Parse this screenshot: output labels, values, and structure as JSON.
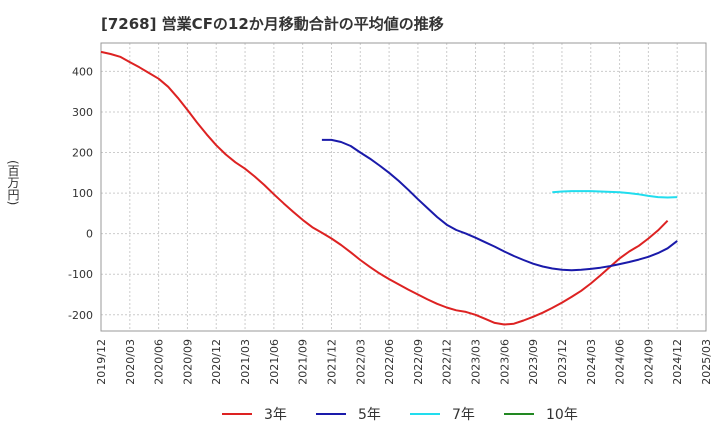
{
  "chart_data": {
    "type": "line",
    "title": "[7268]  営業CFの12か月移動合計の平均値の推移",
    "ylabel": "(百万円)",
    "xlabel": "",
    "ylim": [
      -240,
      470
    ],
    "yticks": [
      400,
      300,
      200,
      100,
      0,
      -100,
      -200
    ],
    "xticks": [
      "2019/12",
      "2020/03",
      "2020/06",
      "2020/09",
      "2020/12",
      "2021/03",
      "2021/06",
      "2021/09",
      "2021/12",
      "2022/03",
      "2022/06",
      "2022/09",
      "2022/12",
      "2023/03",
      "2023/06",
      "2023/09",
      "2023/12",
      "2024/03",
      "2024/06",
      "2024/09",
      "2024/12",
      "2025/03"
    ],
    "grid": true,
    "legend_position": "bottom",
    "series": [
      {
        "name": "3年",
        "color": "#dd2222",
        "x": [
          "2019/12",
          "2020/01",
          "2020/02",
          "2020/03",
          "2020/04",
          "2020/05",
          "2020/06",
          "2020/07",
          "2020/08",
          "2020/09",
          "2020/10",
          "2020/11",
          "2020/12",
          "2021/01",
          "2021/02",
          "2021/03",
          "2021/04",
          "2021/05",
          "2021/06",
          "2021/07",
          "2021/08",
          "2021/09",
          "2021/10",
          "2021/11",
          "2021/12",
          "2022/01",
          "2022/02",
          "2022/03",
          "2022/04",
          "2022/05",
          "2022/06",
          "2022/07",
          "2022/08",
          "2022/09",
          "2022/10",
          "2022/11",
          "2022/12",
          "2023/01",
          "2023/02",
          "2023/03",
          "2023/04",
          "2023/05",
          "2023/06",
          "2023/07",
          "2023/08",
          "2023/09",
          "2023/10",
          "2023/11",
          "2023/12",
          "2024/01",
          "2024/02",
          "2024/03",
          "2024/04",
          "2024/05",
          "2024/06",
          "2024/07",
          "2024/08",
          "2024/09",
          "2024/10",
          "2024/11",
          "2024/12"
        ],
        "values": [
          448,
          443,
          436,
          423,
          410,
          396,
          382,
          362,
          335,
          305,
          274,
          245,
          218,
          195,
          176,
          160,
          141,
          120,
          97,
          75,
          54,
          34,
          16,
          2,
          -12,
          -28,
          -46,
          -65,
          -82,
          -98,
          -112,
          -125,
          -138,
          -150,
          -162,
          -173,
          -182,
          -189,
          -193,
          -200,
          -210,
          -220,
          -224,
          -222,
          -214,
          -205,
          -195,
          -183,
          -170,
          -156,
          -141,
          -123,
          -103,
          -82,
          -61,
          -44,
          -30,
          -12,
          8,
          32,
          null
        ],
        "values_note": ""
      },
      {
        "name": "5年",
        "color": "#1a1aaa",
        "x": [
          "2021/11",
          "2021/12",
          "2022/01",
          "2022/02",
          "2022/03",
          "2022/04",
          "2022/05",
          "2022/06",
          "2022/07",
          "2022/08",
          "2022/09",
          "2022/10",
          "2022/11",
          "2022/12",
          "2023/01",
          "2023/02",
          "2023/03",
          "2023/04",
          "2023/05",
          "2023/06",
          "2023/07",
          "2023/08",
          "2023/09",
          "2023/10",
          "2023/11",
          "2023/12",
          "2024/01",
          "2024/02",
          "2024/03",
          "2024/04",
          "2024/05",
          "2024/06",
          "2024/07",
          "2024/08",
          "2024/09",
          "2024/10",
          "2024/11",
          "2024/12"
        ],
        "values": [
          231,
          231,
          226,
          216,
          200,
          185,
          168,
          150,
          130,
          108,
          85,
          63,
          41,
          22,
          9,
          0,
          -10,
          -21,
          -32,
          -44,
          -55,
          -65,
          -74,
          -81,
          -86,
          -89,
          -90,
          -89,
          -87,
          -84,
          -80,
          -75,
          -70,
          -64,
          -57,
          -48,
          -36,
          -18
        ]
      },
      {
        "name": "7年",
        "color": "#22ddee",
        "x": [
          "2023/11",
          "2023/12",
          "2024/01",
          "2024/02",
          "2024/03",
          "2024/04",
          "2024/05",
          "2024/06",
          "2024/07",
          "2024/08",
          "2024/09",
          "2024/10",
          "2024/11",
          "2024/12"
        ],
        "values": [
          102,
          104,
          105,
          105,
          105,
          104,
          103,
          102,
          100,
          97,
          93,
          90,
          89,
          90
        ]
      },
      {
        "name": "10年",
        "color": "#228822",
        "x": [],
        "values": []
      }
    ]
  }
}
